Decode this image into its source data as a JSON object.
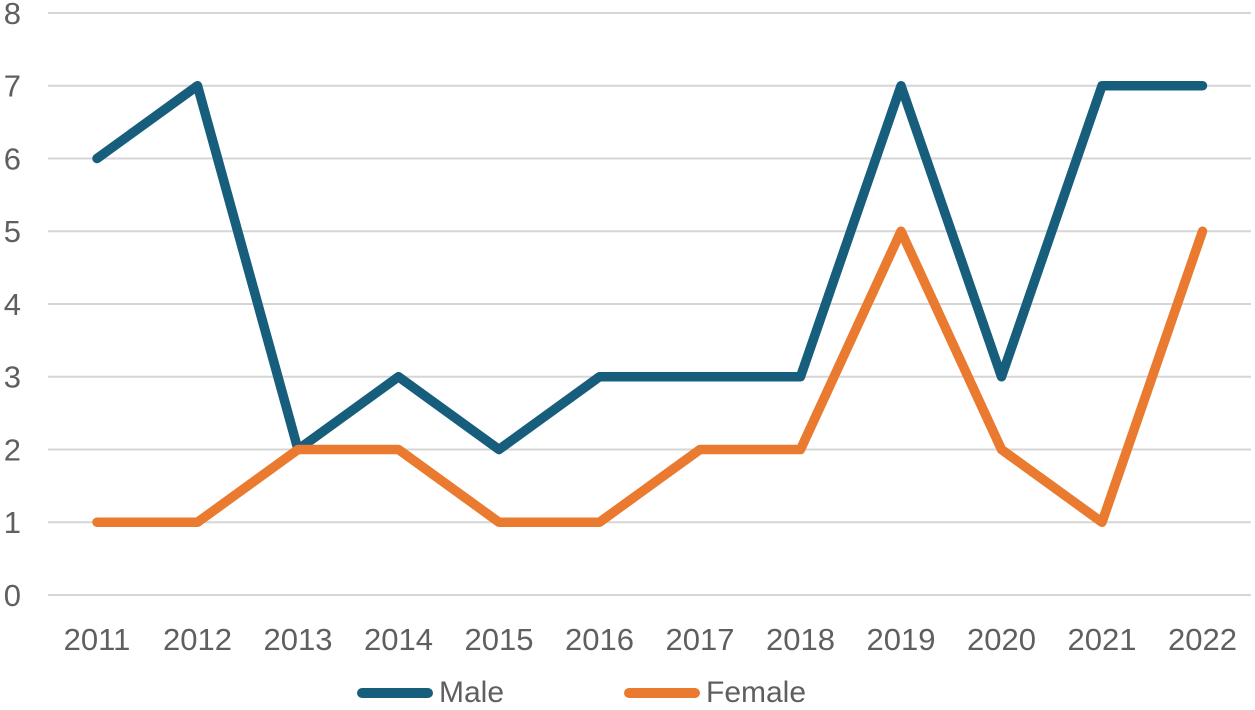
{
  "chart_data": {
    "type": "line",
    "title": "",
    "xlabel": "",
    "ylabel": "",
    "categories": [
      "2011",
      "2012",
      "2013",
      "2014",
      "2015",
      "2016",
      "2017",
      "2018",
      "2019",
      "2020",
      "2021",
      "2022"
    ],
    "series": [
      {
        "name": "Male",
        "color": "#175E7D",
        "values": [
          6,
          7,
          2,
          3,
          2,
          3,
          3,
          3,
          7,
          3,
          7,
          7
        ]
      },
      {
        "name": "Female",
        "color": "#EA7A2F",
        "values": [
          1,
          1,
          2,
          2,
          1,
          1,
          2,
          2,
          5,
          2,
          1,
          5
        ]
      }
    ],
    "ylim": [
      0,
      8
    ],
    "yticks": [
      0,
      1,
      2,
      3,
      4,
      5,
      6,
      7,
      8
    ],
    "grid": true,
    "legend_position": "bottom",
    "colors": {
      "gridline": "#D6D6D6",
      "tick_label": "#5f5f5f",
      "background": "#ffffff"
    }
  }
}
